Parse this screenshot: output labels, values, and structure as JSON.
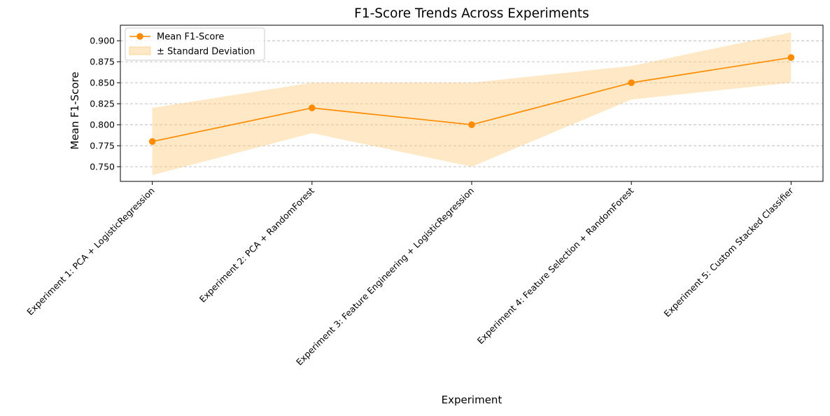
{
  "chart_data": {
    "type": "line",
    "title": "F1-Score Trends Across Experiments",
    "xlabel": "Experiment",
    "ylabel": "Mean F1-Score",
    "categories": [
      "Experiment 1: PCA + LogisticRegression",
      "Experiment 2: PCA + RandomForest",
      "Experiment 3: Feature Engineering + LogisticRegression",
      "Experiment 4: Feature Selection + RandomForest",
      "Experiment 5: Custom Stacked Classifier"
    ],
    "series": [
      {
        "name": "Mean F1-Score",
        "values": [
          0.78,
          0.82,
          0.8,
          0.85,
          0.88
        ],
        "color": "#ff8c00"
      }
    ],
    "band": {
      "name": "± Standard Deviation",
      "lower": [
        0.74,
        0.79,
        0.75,
        0.83,
        0.85
      ],
      "upper": [
        0.82,
        0.85,
        0.85,
        0.87,
        0.91
      ],
      "color": "#ffcc80"
    },
    "ylim": [
      0.7325,
      0.9185
    ],
    "yticks": [
      0.75,
      0.775,
      0.8,
      0.825,
      0.85,
      0.875,
      0.9
    ],
    "ytick_labels": [
      "0.750",
      "0.775",
      "0.800",
      "0.825",
      "0.850",
      "0.875",
      "0.900"
    ],
    "grid": "y-dashed",
    "legend_position": "top-left"
  }
}
